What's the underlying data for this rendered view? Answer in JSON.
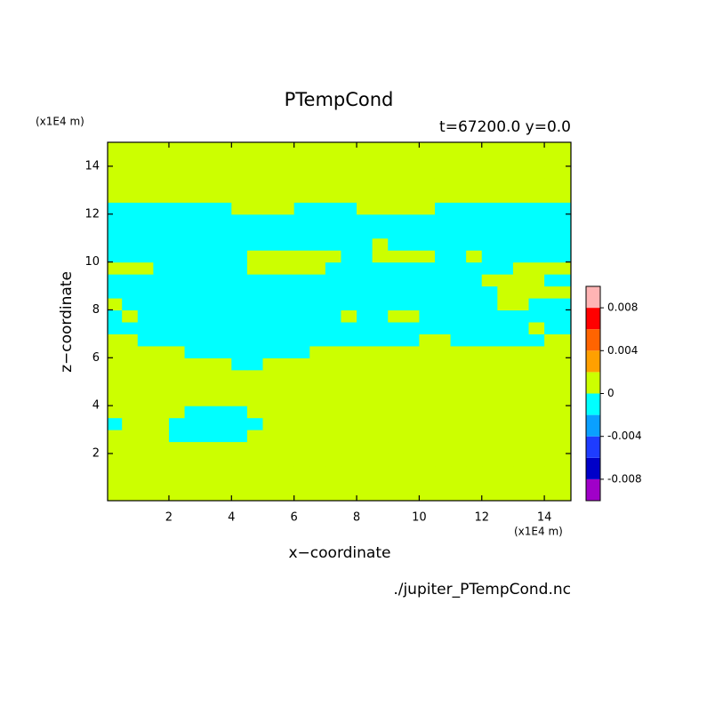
{
  "chart_data": {
    "type": "contour",
    "title": "PTempCond",
    "subtitle": "t=67200.0 y=0.0",
    "x_label": "x−coordinate",
    "y_label": "z−coordinate",
    "x_unit_label": "(x1E4 m)",
    "y_unit_label": "(x1E4 m)",
    "source": "./jupiter_PTempCond.nc",
    "xlim": [
      0.04,
      14.85
    ],
    "ylim": [
      0.03,
      15.0
    ],
    "xticks": [
      2,
      4,
      6,
      8,
      10,
      12,
      14
    ],
    "yticks": [
      2,
      4,
      6,
      8,
      10,
      12,
      14
    ],
    "levels": [
      -0.01,
      -0.008,
      -0.006,
      -0.004,
      -0.002,
      0,
      0.002,
      0.004,
      0.006,
      0.008,
      0.01
    ],
    "colors": [
      "#a000c8",
      "#0000c8",
      "#1e3cff",
      "#0aa0ff",
      "#00ffff",
      "#ccff00",
      "#ffa000",
      "#ff6400",
      "#ff0000",
      "#ffb4b4"
    ],
    "colorbar_ticks": [
      0.008,
      0.004,
      0,
      -0.004,
      -0.008
    ],
    "x": [
      0.25,
      0.75,
      1.25,
      1.75,
      2.25,
      2.75,
      3.25,
      3.75,
      4.25,
      4.75,
      5.25,
      5.75,
      6.25,
      6.75,
      7.25,
      7.75,
      8.25,
      8.75,
      9.25,
      9.75,
      10.25,
      10.75,
      11.25,
      11.75,
      12.25,
      12.75,
      13.25,
      13.75,
      14.25,
      14.75
    ],
    "y": [
      0.25,
      0.75,
      1.25,
      1.75,
      2.25,
      2.75,
      3.25,
      3.75,
      4.25,
      4.75,
      5.25,
      5.75,
      6.25,
      6.75,
      7.25,
      7.75,
      8.25,
      8.75,
      9.25,
      9.75,
      10.25,
      10.75,
      11.25,
      11.75,
      12.25,
      12.75,
      13.25,
      13.75,
      14.25,
      14.75
    ],
    "z": [
      [
        0.001,
        0.001,
        0.001,
        0.001,
        0.001,
        0.001,
        0.001,
        0.001,
        0.001,
        0.001,
        0.001,
        0.001,
        0.001,
        0.001,
        0.001,
        0.001,
        0.001,
        0.001,
        0.001,
        0.001,
        0.001,
        0.001,
        0.001,
        0.001,
        0.001,
        0.001,
        0.001,
        0.001,
        0.001,
        0.001
      ],
      [
        0.001,
        0.001,
        0.001,
        0.001,
        0.001,
        0.001,
        0.001,
        0.001,
        0.001,
        0.001,
        0.001,
        0.001,
        0.001,
        0.001,
        0.001,
        0.001,
        0.001,
        0.001,
        0.001,
        0.001,
        0.001,
        0.001,
        0.001,
        0.001,
        0.001,
        0.001,
        0.001,
        0.001,
        0.001,
        0.001
      ],
      [
        0.001,
        0.001,
        0.001,
        0.001,
        0.001,
        0.001,
        0.001,
        0.001,
        0.001,
        0.001,
        0.001,
        0.001,
        0.001,
        0.001,
        0.001,
        0.001,
        0.001,
        0.001,
        0.001,
        0.001,
        0.001,
        0.001,
        0.001,
        0.001,
        0.001,
        0.001,
        0.001,
        0.001,
        0.001,
        0.001
      ],
      [
        0.001,
        0.001,
        0.001,
        0.001,
        0.001,
        0.001,
        0.001,
        0.001,
        0.001,
        0.001,
        0.001,
        0.001,
        0.001,
        0.001,
        0.001,
        0.001,
        0.001,
        0.001,
        0.001,
        0.001,
        0.001,
        0.001,
        0.001,
        0.001,
        0.001,
        0.001,
        0.001,
        0.001,
        0.001,
        0.001
      ],
      [
        0.001,
        0.001,
        0.001,
        0.001,
        0.001,
        0.001,
        0.001,
        0.001,
        0.001,
        0.001,
        0.001,
        0.001,
        0.001,
        0.001,
        0.001,
        0.001,
        0.001,
        0.001,
        0.001,
        0.001,
        0.001,
        0.001,
        0.001,
        0.001,
        0.001,
        0.001,
        0.001,
        0.001,
        0.001,
        0.001
      ],
      [
        0.001,
        0.001,
        0.001,
        0.001,
        -0.001,
        -0.001,
        -0.001,
        -0.001,
        -0.001,
        0.001,
        0.001,
        0.001,
        0.001,
        0.001,
        0.001,
        0.001,
        0.001,
        0.001,
        0.001,
        0.001,
        0.001,
        0.001,
        0.001,
        0.001,
        0.001,
        0.001,
        0.001,
        0.001,
        0.001,
        0.001
      ],
      [
        -0.001,
        0.001,
        0.001,
        0.001,
        -0.001,
        -0.001,
        -0.001,
        -0.001,
        -0.001,
        -0.001,
        0.001,
        0.001,
        0.001,
        0.001,
        0.001,
        0.001,
        0.001,
        0.001,
        0.001,
        0.001,
        0.001,
        0.001,
        0.001,
        0.001,
        0.001,
        0.001,
        0.001,
        0.001,
        0.001,
        0.001
      ],
      [
        0.001,
        0.001,
        0.001,
        0.001,
        0.001,
        -0.001,
        -0.001,
        -0.001,
        -0.001,
        0.001,
        0.001,
        0.001,
        0.001,
        0.001,
        0.001,
        0.001,
        0.001,
        0.001,
        0.001,
        0.001,
        0.001,
        0.001,
        0.001,
        0.001,
        0.001,
        0.001,
        0.001,
        0.001,
        0.001,
        0.001
      ],
      [
        0.001,
        0.001,
        0.001,
        0.001,
        0.001,
        0.001,
        0.001,
        0.001,
        0.001,
        0.001,
        0.001,
        0.001,
        0.001,
        0.001,
        0.001,
        0.001,
        0.001,
        0.001,
        0.001,
        0.001,
        0.001,
        0.001,
        0.001,
        0.001,
        0.001,
        0.001,
        0.001,
        0.001,
        0.001,
        0.001
      ],
      [
        0.001,
        0.001,
        0.001,
        0.001,
        0.001,
        0.001,
        0.001,
        0.001,
        0.001,
        0.001,
        0.001,
        0.001,
        0.001,
        0.001,
        0.001,
        0.001,
        0.001,
        0.001,
        0.001,
        0.001,
        0.001,
        0.001,
        0.001,
        0.001,
        0.001,
        0.001,
        0.001,
        0.001,
        0.001,
        0.001
      ],
      [
        0.001,
        0.001,
        0.001,
        0.001,
        0.001,
        0.001,
        0.001,
        0.001,
        0.001,
        0.001,
        0.001,
        0.001,
        0.001,
        0.001,
        0.001,
        0.001,
        0.001,
        0.001,
        0.001,
        0.001,
        0.001,
        0.001,
        0.001,
        0.001,
        0.001,
        0.001,
        0.001,
        0.001,
        0.001,
        0.001
      ],
      [
        0.001,
        0.001,
        0.001,
        0.001,
        0.001,
        0.001,
        0.001,
        0.001,
        -0.001,
        -0.001,
        0.001,
        0.001,
        0.001,
        0.001,
        0.001,
        0.001,
        0.001,
        0.001,
        0.001,
        0.001,
        0.001,
        0.001,
        0.001,
        0.001,
        0.001,
        0.001,
        0.001,
        0.001,
        0.001,
        0.001
      ],
      [
        0.001,
        0.001,
        0.001,
        0.001,
        0.001,
        -0.001,
        -0.001,
        -0.001,
        -0.001,
        -0.001,
        -0.001,
        -0.001,
        -0.001,
        0.001,
        0.001,
        0.001,
        0.001,
        0.001,
        0.001,
        0.001,
        0.001,
        0.001,
        0.001,
        0.001,
        0.001,
        0.001,
        0.001,
        0.001,
        0.001,
        0.001
      ],
      [
        0.001,
        0.001,
        -0.001,
        -0.001,
        -0.001,
        -0.001,
        -0.001,
        -0.001,
        -0.001,
        -0.001,
        -0.001,
        -0.001,
        -0.001,
        -0.001,
        -0.001,
        -0.001,
        -0.001,
        -0.001,
        -0.001,
        -0.001,
        0.001,
        0.001,
        -0.001,
        -0.001,
        -0.001,
        -0.001,
        -0.001,
        -0.001,
        0.001,
        0.001
      ],
      [
        -0.001,
        -0.001,
        -0.001,
        -0.001,
        -0.001,
        -0.001,
        -0.001,
        -0.001,
        -0.001,
        -0.001,
        -0.001,
        -0.001,
        -0.001,
        -0.001,
        -0.001,
        -0.001,
        -0.001,
        -0.001,
        -0.001,
        -0.001,
        -0.001,
        -0.001,
        -0.001,
        -0.001,
        -0.001,
        -0.001,
        -0.001,
        0.001,
        -0.001,
        -0.001
      ],
      [
        -0.001,
        0.001,
        -0.001,
        -0.001,
        -0.001,
        -0.001,
        -0.001,
        -0.001,
        -0.001,
        -0.001,
        -0.001,
        -0.001,
        -0.001,
        -0.001,
        -0.001,
        0.001,
        -0.001,
        -0.001,
        0.001,
        0.001,
        -0.001,
        -0.001,
        -0.001,
        -0.001,
        -0.001,
        -0.001,
        -0.001,
        -0.001,
        -0.001,
        -0.001
      ],
      [
        0.001,
        -0.001,
        -0.001,
        -0.001,
        -0.001,
        -0.001,
        -0.001,
        -0.001,
        -0.001,
        -0.001,
        -0.001,
        -0.001,
        -0.001,
        -0.001,
        -0.001,
        -0.001,
        -0.001,
        -0.001,
        -0.001,
        -0.001,
        -0.001,
        -0.001,
        -0.001,
        -0.001,
        -0.001,
        0.001,
        0.001,
        -0.001,
        -0.001,
        -0.001
      ],
      [
        -0.001,
        -0.001,
        -0.001,
        -0.001,
        -0.001,
        -0.001,
        -0.001,
        -0.001,
        -0.001,
        -0.001,
        -0.001,
        -0.001,
        -0.001,
        -0.001,
        -0.001,
        -0.001,
        -0.001,
        -0.001,
        -0.001,
        -0.001,
        -0.001,
        -0.001,
        -0.001,
        -0.001,
        -0.001,
        0.001,
        0.001,
        0.001,
        0.001,
        0.001
      ],
      [
        -0.001,
        -0.001,
        -0.001,
        -0.001,
        -0.001,
        -0.001,
        -0.001,
        -0.001,
        -0.001,
        -0.001,
        -0.001,
        -0.001,
        -0.001,
        -0.001,
        -0.001,
        -0.001,
        -0.001,
        -0.001,
        -0.001,
        -0.001,
        -0.001,
        -0.001,
        -0.001,
        -0.001,
        0.001,
        0.001,
        0.001,
        0.001,
        -0.001,
        -0.001
      ],
      [
        0.001,
        0.001,
        0.001,
        -0.001,
        -0.001,
        -0.001,
        -0.001,
        -0.001,
        -0.001,
        0.001,
        0.001,
        0.001,
        0.001,
        0.001,
        -0.001,
        -0.001,
        -0.001,
        -0.001,
        -0.001,
        -0.001,
        -0.001,
        -0.001,
        -0.001,
        -0.001,
        -0.001,
        -0.001,
        0.001,
        0.001,
        0.001,
        0.001
      ],
      [
        -0.001,
        -0.001,
        -0.001,
        -0.001,
        -0.001,
        -0.001,
        -0.001,
        -0.001,
        -0.001,
        0.001,
        0.001,
        0.001,
        0.001,
        0.001,
        0.001,
        -0.001,
        -0.001,
        0.001,
        0.001,
        0.001,
        0.001,
        -0.001,
        -0.001,
        0.001,
        -0.001,
        -0.001,
        -0.001,
        -0.001,
        -0.001,
        -0.001
      ],
      [
        -0.001,
        -0.001,
        -0.001,
        -0.001,
        -0.001,
        -0.001,
        -0.001,
        -0.001,
        -0.001,
        -0.001,
        -0.001,
        -0.001,
        -0.001,
        -0.001,
        -0.001,
        -0.001,
        -0.001,
        0.001,
        -0.001,
        -0.001,
        -0.001,
        -0.001,
        -0.001,
        -0.001,
        -0.001,
        -0.001,
        -0.001,
        -0.001,
        -0.001,
        -0.001
      ],
      [
        -0.001,
        -0.001,
        -0.001,
        -0.001,
        -0.001,
        -0.001,
        -0.001,
        -0.001,
        -0.001,
        -0.001,
        -0.001,
        -0.001,
        -0.001,
        -0.001,
        -0.001,
        -0.001,
        -0.001,
        -0.001,
        -0.001,
        -0.001,
        -0.001,
        -0.001,
        -0.001,
        -0.001,
        -0.001,
        -0.001,
        -0.001,
        -0.001,
        -0.001,
        -0.001
      ],
      [
        -0.001,
        -0.001,
        -0.001,
        -0.001,
        -0.001,
        -0.001,
        -0.001,
        -0.001,
        -0.001,
        -0.001,
        -0.001,
        -0.001,
        -0.001,
        -0.001,
        -0.001,
        -0.001,
        -0.001,
        -0.001,
        -0.001,
        -0.001,
        -0.001,
        -0.001,
        -0.001,
        -0.001,
        -0.001,
        -0.001,
        -0.001,
        -0.001,
        -0.001,
        -0.001
      ],
      [
        -0.001,
        -0.001,
        -0.001,
        -0.001,
        -0.001,
        -0.001,
        -0.001,
        -0.001,
        0.001,
        0.001,
        0.001,
        0.001,
        -0.001,
        -0.001,
        -0.001,
        -0.001,
        0.001,
        0.001,
        0.001,
        0.001,
        0.001,
        -0.001,
        -0.001,
        -0.001,
        -0.001,
        -0.001,
        -0.001,
        -0.001,
        -0.001,
        -0.001
      ],
      [
        0.001,
        0.001,
        0.001,
        0.001,
        0.001,
        0.001,
        0.001,
        0.001,
        0.001,
        0.001,
        0.001,
        0.001,
        0.001,
        0.001,
        0.001,
        0.001,
        0.001,
        0.001,
        0.001,
        0.001,
        0.001,
        0.001,
        0.001,
        0.001,
        0.001,
        0.001,
        0.001,
        0.001,
        0.001,
        0.001
      ],
      [
        0.001,
        0.001,
        0.001,
        0.001,
        0.001,
        0.001,
        0.001,
        0.001,
        0.001,
        0.001,
        0.001,
        0.001,
        0.001,
        0.001,
        0.001,
        0.001,
        0.001,
        0.001,
        0.001,
        0.001,
        0.001,
        0.001,
        0.001,
        0.001,
        0.001,
        0.001,
        0.001,
        0.001,
        0.001,
        0.001
      ],
      [
        0.001,
        0.001,
        0.001,
        0.001,
        0.001,
        0.001,
        0.001,
        0.001,
        0.001,
        0.001,
        0.001,
        0.001,
        0.001,
        0.001,
        0.001,
        0.001,
        0.001,
        0.001,
        0.001,
        0.001,
        0.001,
        0.001,
        0.001,
        0.001,
        0.001,
        0.001,
        0.001,
        0.001,
        0.001,
        0.001
      ],
      [
        0.001,
        0.001,
        0.001,
        0.001,
        0.001,
        0.001,
        0.001,
        0.001,
        0.001,
        0.001,
        0.001,
        0.001,
        0.001,
        0.001,
        0.001,
        0.001,
        0.001,
        0.001,
        0.001,
        0.001,
        0.001,
        0.001,
        0.001,
        0.001,
        0.001,
        0.001,
        0.001,
        0.001,
        0.001,
        0.001
      ],
      [
        0.001,
        0.001,
        0.001,
        0.001,
        0.001,
        0.001,
        0.001,
        0.001,
        0.001,
        0.001,
        0.001,
        0.001,
        0.001,
        0.001,
        0.001,
        0.001,
        0.001,
        0.001,
        0.001,
        0.001,
        0.001,
        0.001,
        0.001,
        0.001,
        0.001,
        0.001,
        0.001,
        0.001,
        0.001,
        0.001
      ]
    ]
  }
}
